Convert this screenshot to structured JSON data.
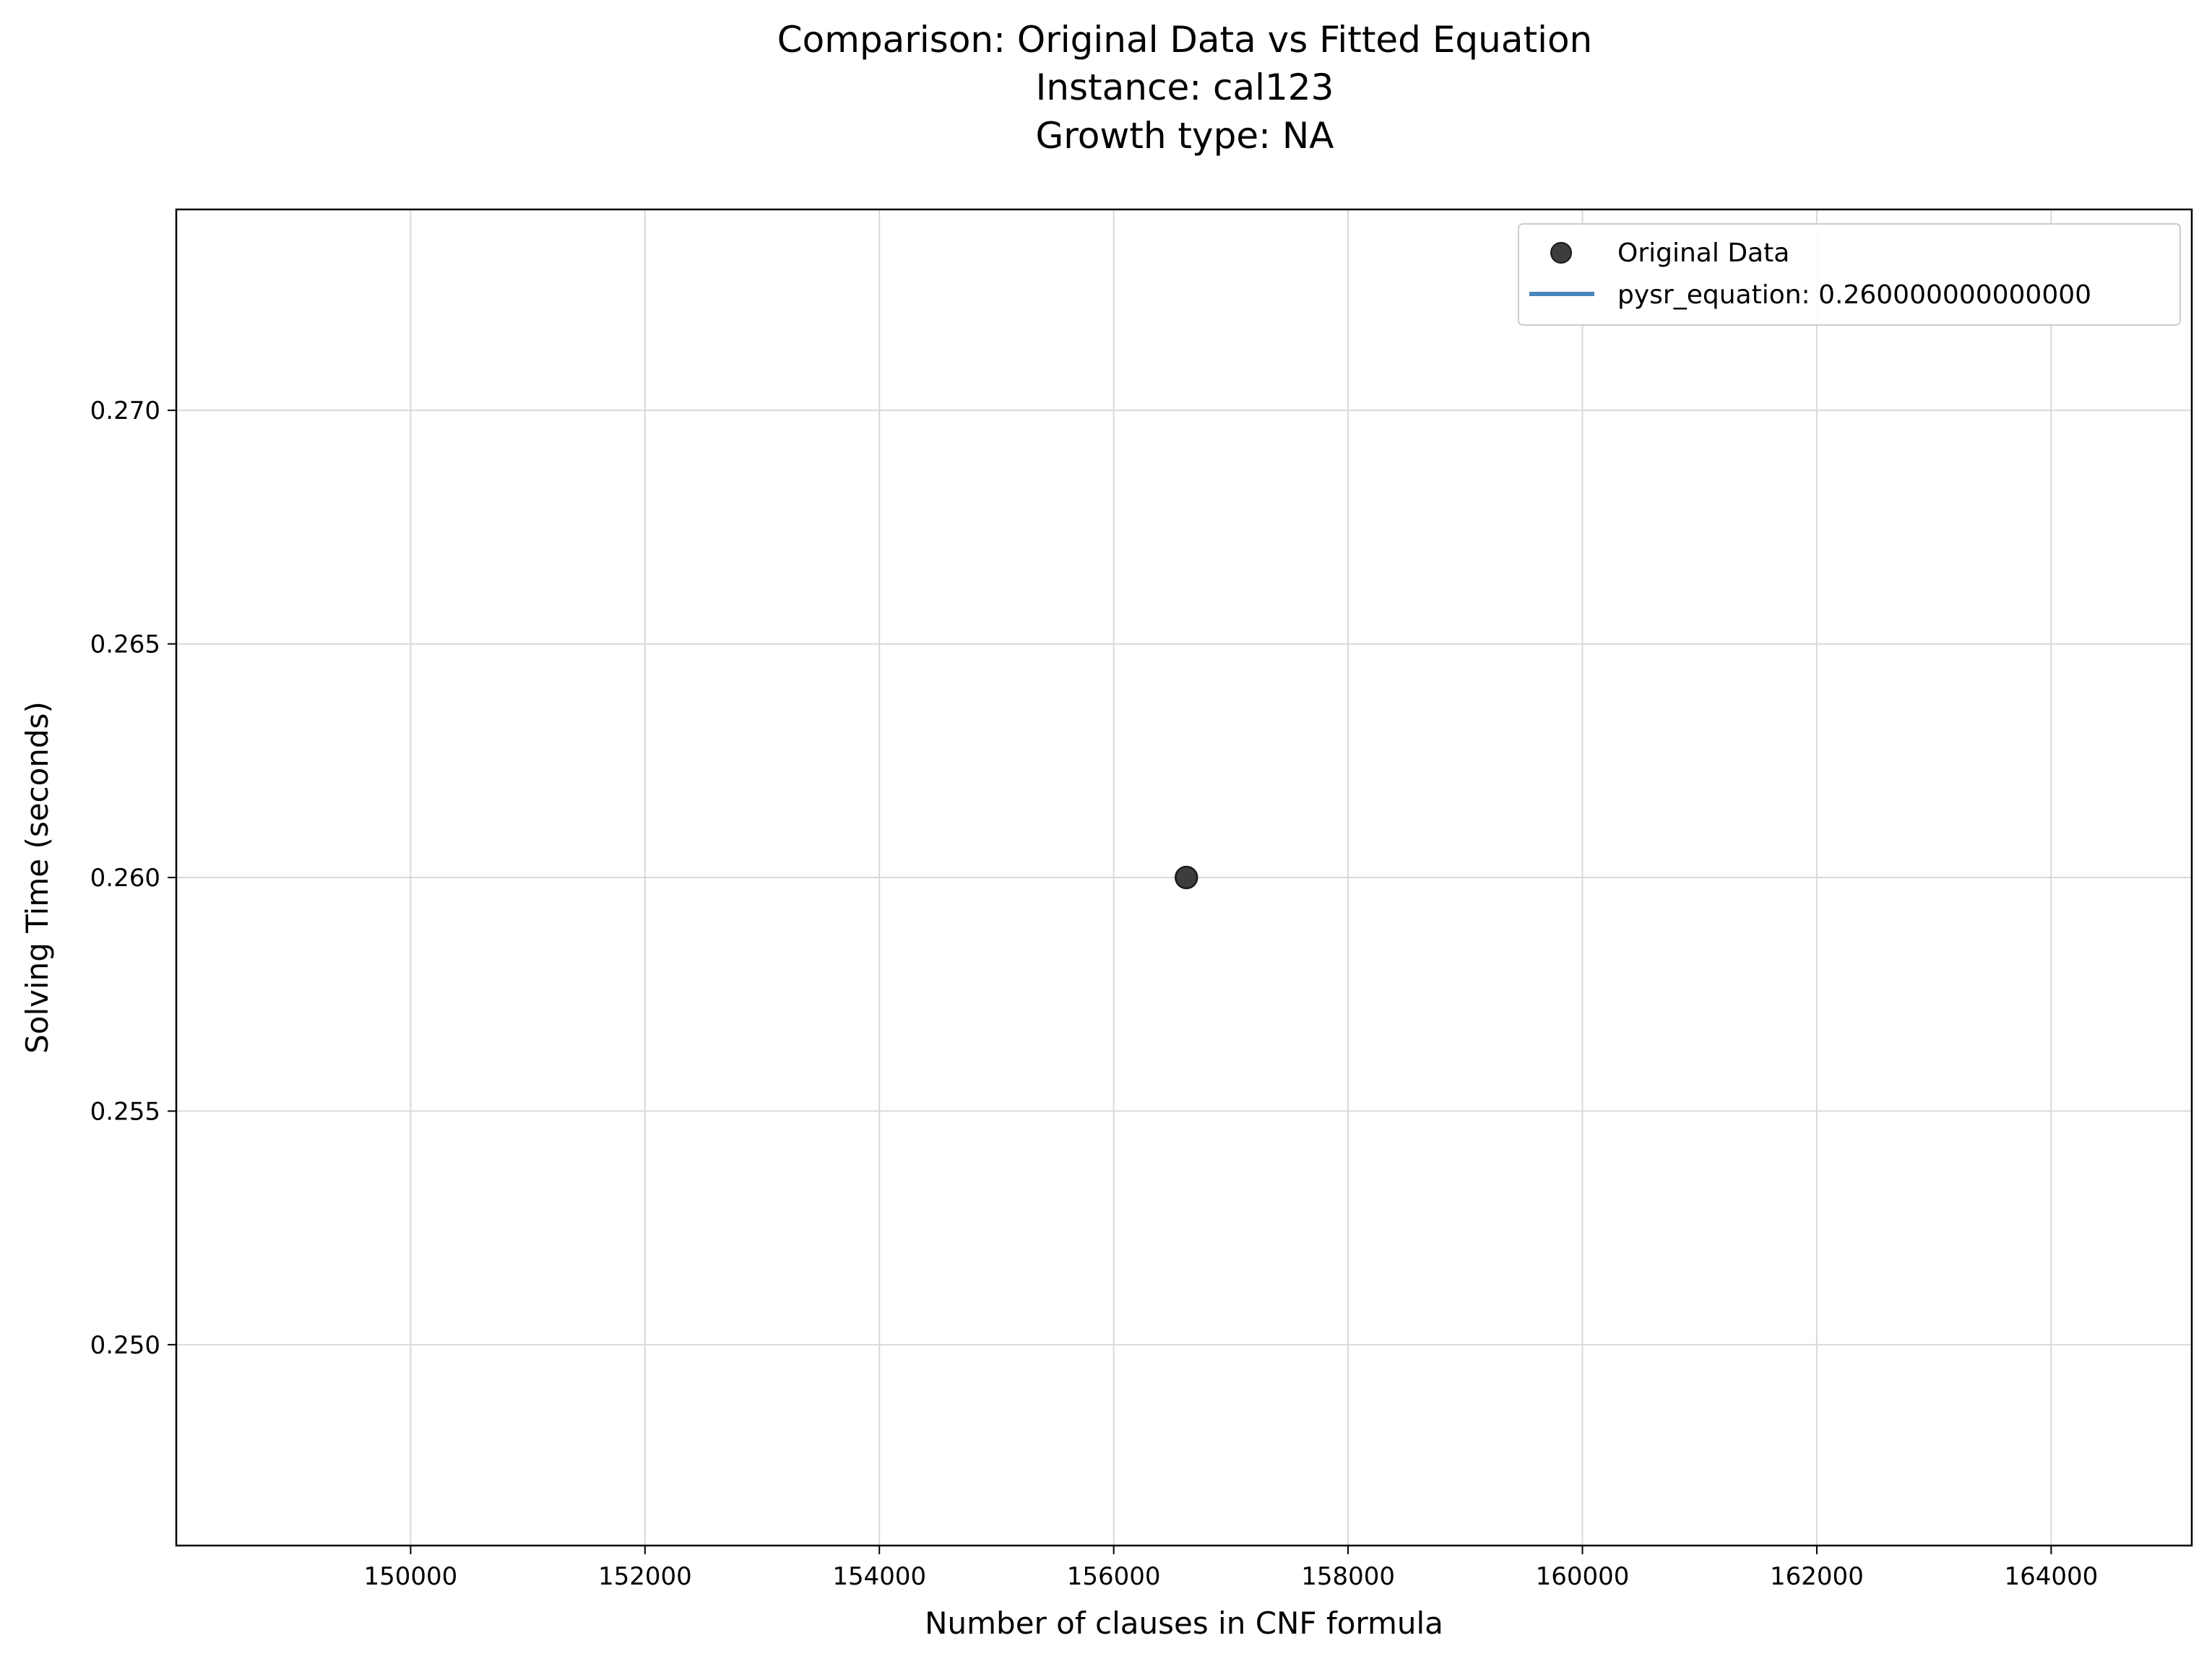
{
  "chart_data": {
    "type": "scatter",
    "title": [
      "Comparison: Original Data vs Fitted Equation",
      "Instance: cal123",
      "Growth type: NA"
    ],
    "xlabel": "Number of clauses in CNF formula",
    "ylabel": "Solving Time (seconds)",
    "xlim": [
      148000,
      165200
    ],
    "ylim": [
      0.2457,
      0.2743
    ],
    "xticks": [
      150000,
      152000,
      154000,
      156000,
      158000,
      160000,
      162000,
      164000
    ],
    "xtick_labels": [
      "150000",
      "152000",
      "154000",
      "156000",
      "158000",
      "160000",
      "162000",
      "164000"
    ],
    "yticks": [
      0.25,
      0.255,
      0.26,
      0.265,
      0.27
    ],
    "ytick_labels": [
      "0.250",
      "0.255",
      "0.260",
      "0.265",
      "0.270"
    ],
    "grid": true,
    "legend_position": "top-right",
    "series": [
      {
        "name": "Original Data",
        "kind": "scatter",
        "color": "#3d3d3d",
        "points": [
          {
            "x": 156620,
            "y": 0.26
          }
        ]
      },
      {
        "name": "pysr_equation: 0.260000000000000",
        "kind": "line",
        "color": "#4a86bb",
        "points": [
          {
            "x": 156620,
            "y": 0.26
          }
        ]
      }
    ]
  }
}
